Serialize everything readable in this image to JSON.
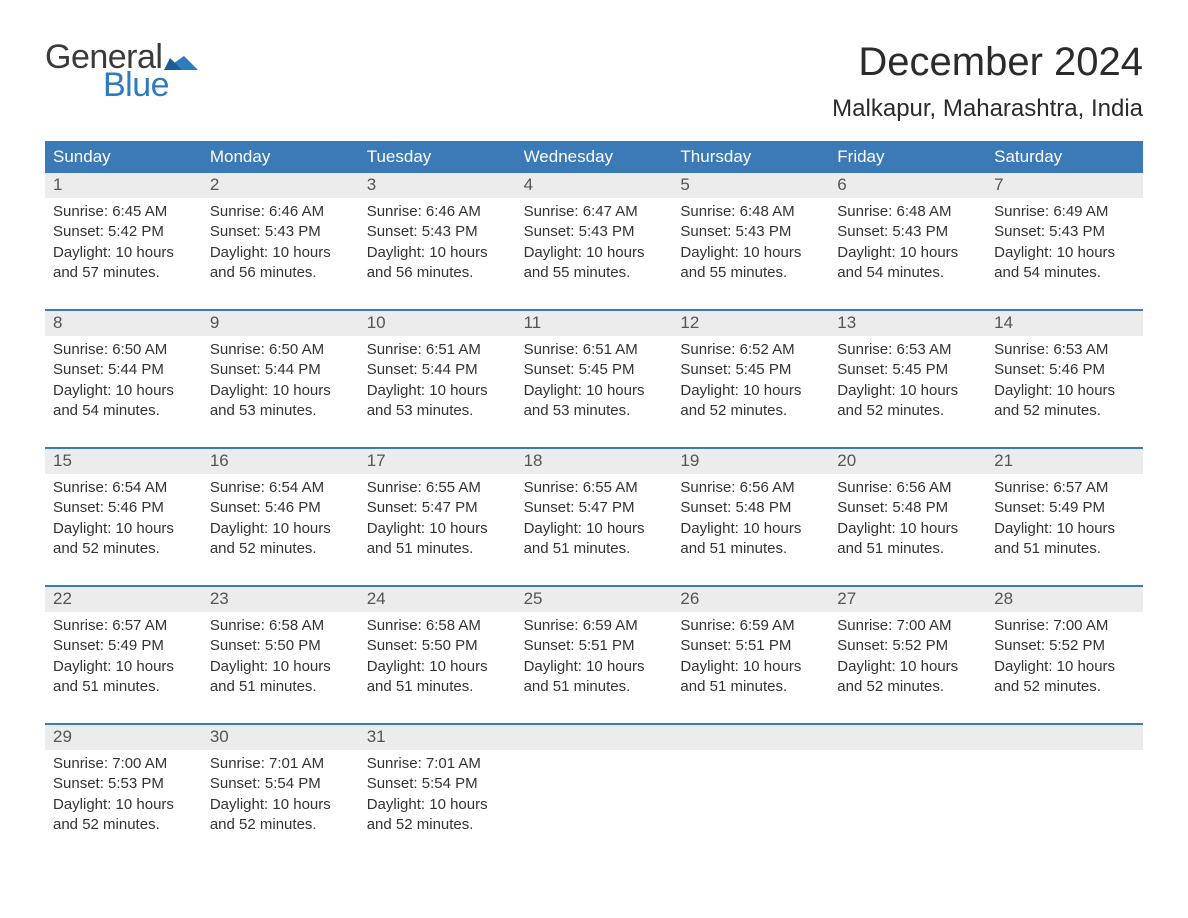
{
  "logo": {
    "text_top": "General",
    "text_bottom": "Blue",
    "color_top": "#3a3a3a",
    "color_bottom": "#2f7bbf",
    "flag_color": "#2f7bbf"
  },
  "title": "December 2024",
  "location": "Malkapur, Maharashtra, India",
  "colors": {
    "header_bg": "#3b79b7",
    "header_text": "#ffffff",
    "daynum_bg": "#ececec",
    "daynum_text": "#555555",
    "body_text": "#333333",
    "rule": "#3b79b7",
    "page_bg": "#ffffff"
  },
  "typography": {
    "title_fontsize": 40,
    "location_fontsize": 24,
    "header_fontsize": 17,
    "daynum_fontsize": 17,
    "body_fontsize": 15
  },
  "layout": {
    "columns": 7,
    "rows": 5,
    "cell_lines": 4
  },
  "day_names": [
    "Sunday",
    "Monday",
    "Tuesday",
    "Wednesday",
    "Thursday",
    "Friday",
    "Saturday"
  ],
  "weeks": [
    [
      {
        "n": "1",
        "sunrise": "6:45 AM",
        "sunset": "5:42 PM",
        "dl_h": "10",
        "dl_m": "57"
      },
      {
        "n": "2",
        "sunrise": "6:46 AM",
        "sunset": "5:43 PM",
        "dl_h": "10",
        "dl_m": "56"
      },
      {
        "n": "3",
        "sunrise": "6:46 AM",
        "sunset": "5:43 PM",
        "dl_h": "10",
        "dl_m": "56"
      },
      {
        "n": "4",
        "sunrise": "6:47 AM",
        "sunset": "5:43 PM",
        "dl_h": "10",
        "dl_m": "55"
      },
      {
        "n": "5",
        "sunrise": "6:48 AM",
        "sunset": "5:43 PM",
        "dl_h": "10",
        "dl_m": "55"
      },
      {
        "n": "6",
        "sunrise": "6:48 AM",
        "sunset": "5:43 PM",
        "dl_h": "10",
        "dl_m": "54"
      },
      {
        "n": "7",
        "sunrise": "6:49 AM",
        "sunset": "5:43 PM",
        "dl_h": "10",
        "dl_m": "54"
      }
    ],
    [
      {
        "n": "8",
        "sunrise": "6:50 AM",
        "sunset": "5:44 PM",
        "dl_h": "10",
        "dl_m": "54"
      },
      {
        "n": "9",
        "sunrise": "6:50 AM",
        "sunset": "5:44 PM",
        "dl_h": "10",
        "dl_m": "53"
      },
      {
        "n": "10",
        "sunrise": "6:51 AM",
        "sunset": "5:44 PM",
        "dl_h": "10",
        "dl_m": "53"
      },
      {
        "n": "11",
        "sunrise": "6:51 AM",
        "sunset": "5:45 PM",
        "dl_h": "10",
        "dl_m": "53"
      },
      {
        "n": "12",
        "sunrise": "6:52 AM",
        "sunset": "5:45 PM",
        "dl_h": "10",
        "dl_m": "52"
      },
      {
        "n": "13",
        "sunrise": "6:53 AM",
        "sunset": "5:45 PM",
        "dl_h": "10",
        "dl_m": "52"
      },
      {
        "n": "14",
        "sunrise": "6:53 AM",
        "sunset": "5:46 PM",
        "dl_h": "10",
        "dl_m": "52"
      }
    ],
    [
      {
        "n": "15",
        "sunrise": "6:54 AM",
        "sunset": "5:46 PM",
        "dl_h": "10",
        "dl_m": "52"
      },
      {
        "n": "16",
        "sunrise": "6:54 AM",
        "sunset": "5:46 PM",
        "dl_h": "10",
        "dl_m": "52"
      },
      {
        "n": "17",
        "sunrise": "6:55 AM",
        "sunset": "5:47 PM",
        "dl_h": "10",
        "dl_m": "51"
      },
      {
        "n": "18",
        "sunrise": "6:55 AM",
        "sunset": "5:47 PM",
        "dl_h": "10",
        "dl_m": "51"
      },
      {
        "n": "19",
        "sunrise": "6:56 AM",
        "sunset": "5:48 PM",
        "dl_h": "10",
        "dl_m": "51"
      },
      {
        "n": "20",
        "sunrise": "6:56 AM",
        "sunset": "5:48 PM",
        "dl_h": "10",
        "dl_m": "51"
      },
      {
        "n": "21",
        "sunrise": "6:57 AM",
        "sunset": "5:49 PM",
        "dl_h": "10",
        "dl_m": "51"
      }
    ],
    [
      {
        "n": "22",
        "sunrise": "6:57 AM",
        "sunset": "5:49 PM",
        "dl_h": "10",
        "dl_m": "51"
      },
      {
        "n": "23",
        "sunrise": "6:58 AM",
        "sunset": "5:50 PM",
        "dl_h": "10",
        "dl_m": "51"
      },
      {
        "n": "24",
        "sunrise": "6:58 AM",
        "sunset": "5:50 PM",
        "dl_h": "10",
        "dl_m": "51"
      },
      {
        "n": "25",
        "sunrise": "6:59 AM",
        "sunset": "5:51 PM",
        "dl_h": "10",
        "dl_m": "51"
      },
      {
        "n": "26",
        "sunrise": "6:59 AM",
        "sunset": "5:51 PM",
        "dl_h": "10",
        "dl_m": "51"
      },
      {
        "n": "27",
        "sunrise": "7:00 AM",
        "sunset": "5:52 PM",
        "dl_h": "10",
        "dl_m": "52"
      },
      {
        "n": "28",
        "sunrise": "7:00 AM",
        "sunset": "5:52 PM",
        "dl_h": "10",
        "dl_m": "52"
      }
    ],
    [
      {
        "n": "29",
        "sunrise": "7:00 AM",
        "sunset": "5:53 PM",
        "dl_h": "10",
        "dl_m": "52"
      },
      {
        "n": "30",
        "sunrise": "7:01 AM",
        "sunset": "5:54 PM",
        "dl_h": "10",
        "dl_m": "52"
      },
      {
        "n": "31",
        "sunrise": "7:01 AM",
        "sunset": "5:54 PM",
        "dl_h": "10",
        "dl_m": "52"
      },
      null,
      null,
      null,
      null
    ]
  ],
  "labels": {
    "sunrise": "Sunrise:",
    "sunset": "Sunset:",
    "daylight_prefix": "Daylight:",
    "hours_word": "hours",
    "and_word": "and",
    "minutes_word": "minutes."
  }
}
